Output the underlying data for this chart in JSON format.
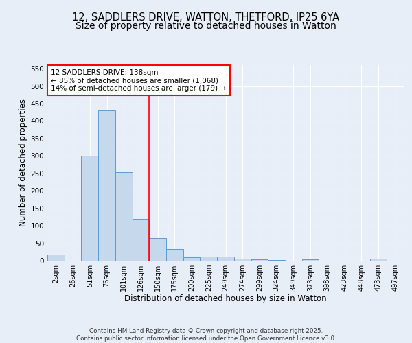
{
  "title_line1": "12, SADDLERS DRIVE, WATTON, THETFORD, IP25 6YA",
  "title_line2": "Size of property relative to detached houses in Watton",
  "xlabel": "Distribution of detached houses by size in Watton",
  "ylabel": "Number of detached properties",
  "bar_labels": [
    "2sqm",
    "26sqm",
    "51sqm",
    "76sqm",
    "101sqm",
    "126sqm",
    "150sqm",
    "175sqm",
    "200sqm",
    "225sqm",
    "249sqm",
    "274sqm",
    "299sqm",
    "324sqm",
    "349sqm",
    "373sqm",
    "398sqm",
    "423sqm",
    "448sqm",
    "473sqm",
    "497sqm"
  ],
  "bar_values": [
    17,
    0,
    300,
    430,
    253,
    120,
    65,
    33,
    10,
    12,
    12,
    5,
    3,
    2,
    0,
    3,
    0,
    0,
    0,
    5,
    0
  ],
  "bar_color": "#c6d9ec",
  "bar_edgecolor": "#5b9bd5",
  "red_line_x": 5.5,
  "annotation_text": "12 SADDLERS DRIVE: 138sqm\n← 85% of detached houses are smaller (1,068)\n14% of semi-detached houses are larger (179) →",
  "annotation_box_color": "white",
  "annotation_box_edgecolor": "red",
  "ylim": [
    0,
    560
  ],
  "yticks": [
    0,
    50,
    100,
    150,
    200,
    250,
    300,
    350,
    400,
    450,
    500,
    550
  ],
  "background_color": "#e8eef8",
  "footer_text": "Contains HM Land Registry data © Crown copyright and database right 2025.\nContains public sector information licensed under the Open Government Licence v3.0.",
  "title_fontsize": 10.5,
  "axis_fontsize": 8.5,
  "tick_fontsize": 7,
  "annot_fontsize": 7.5
}
